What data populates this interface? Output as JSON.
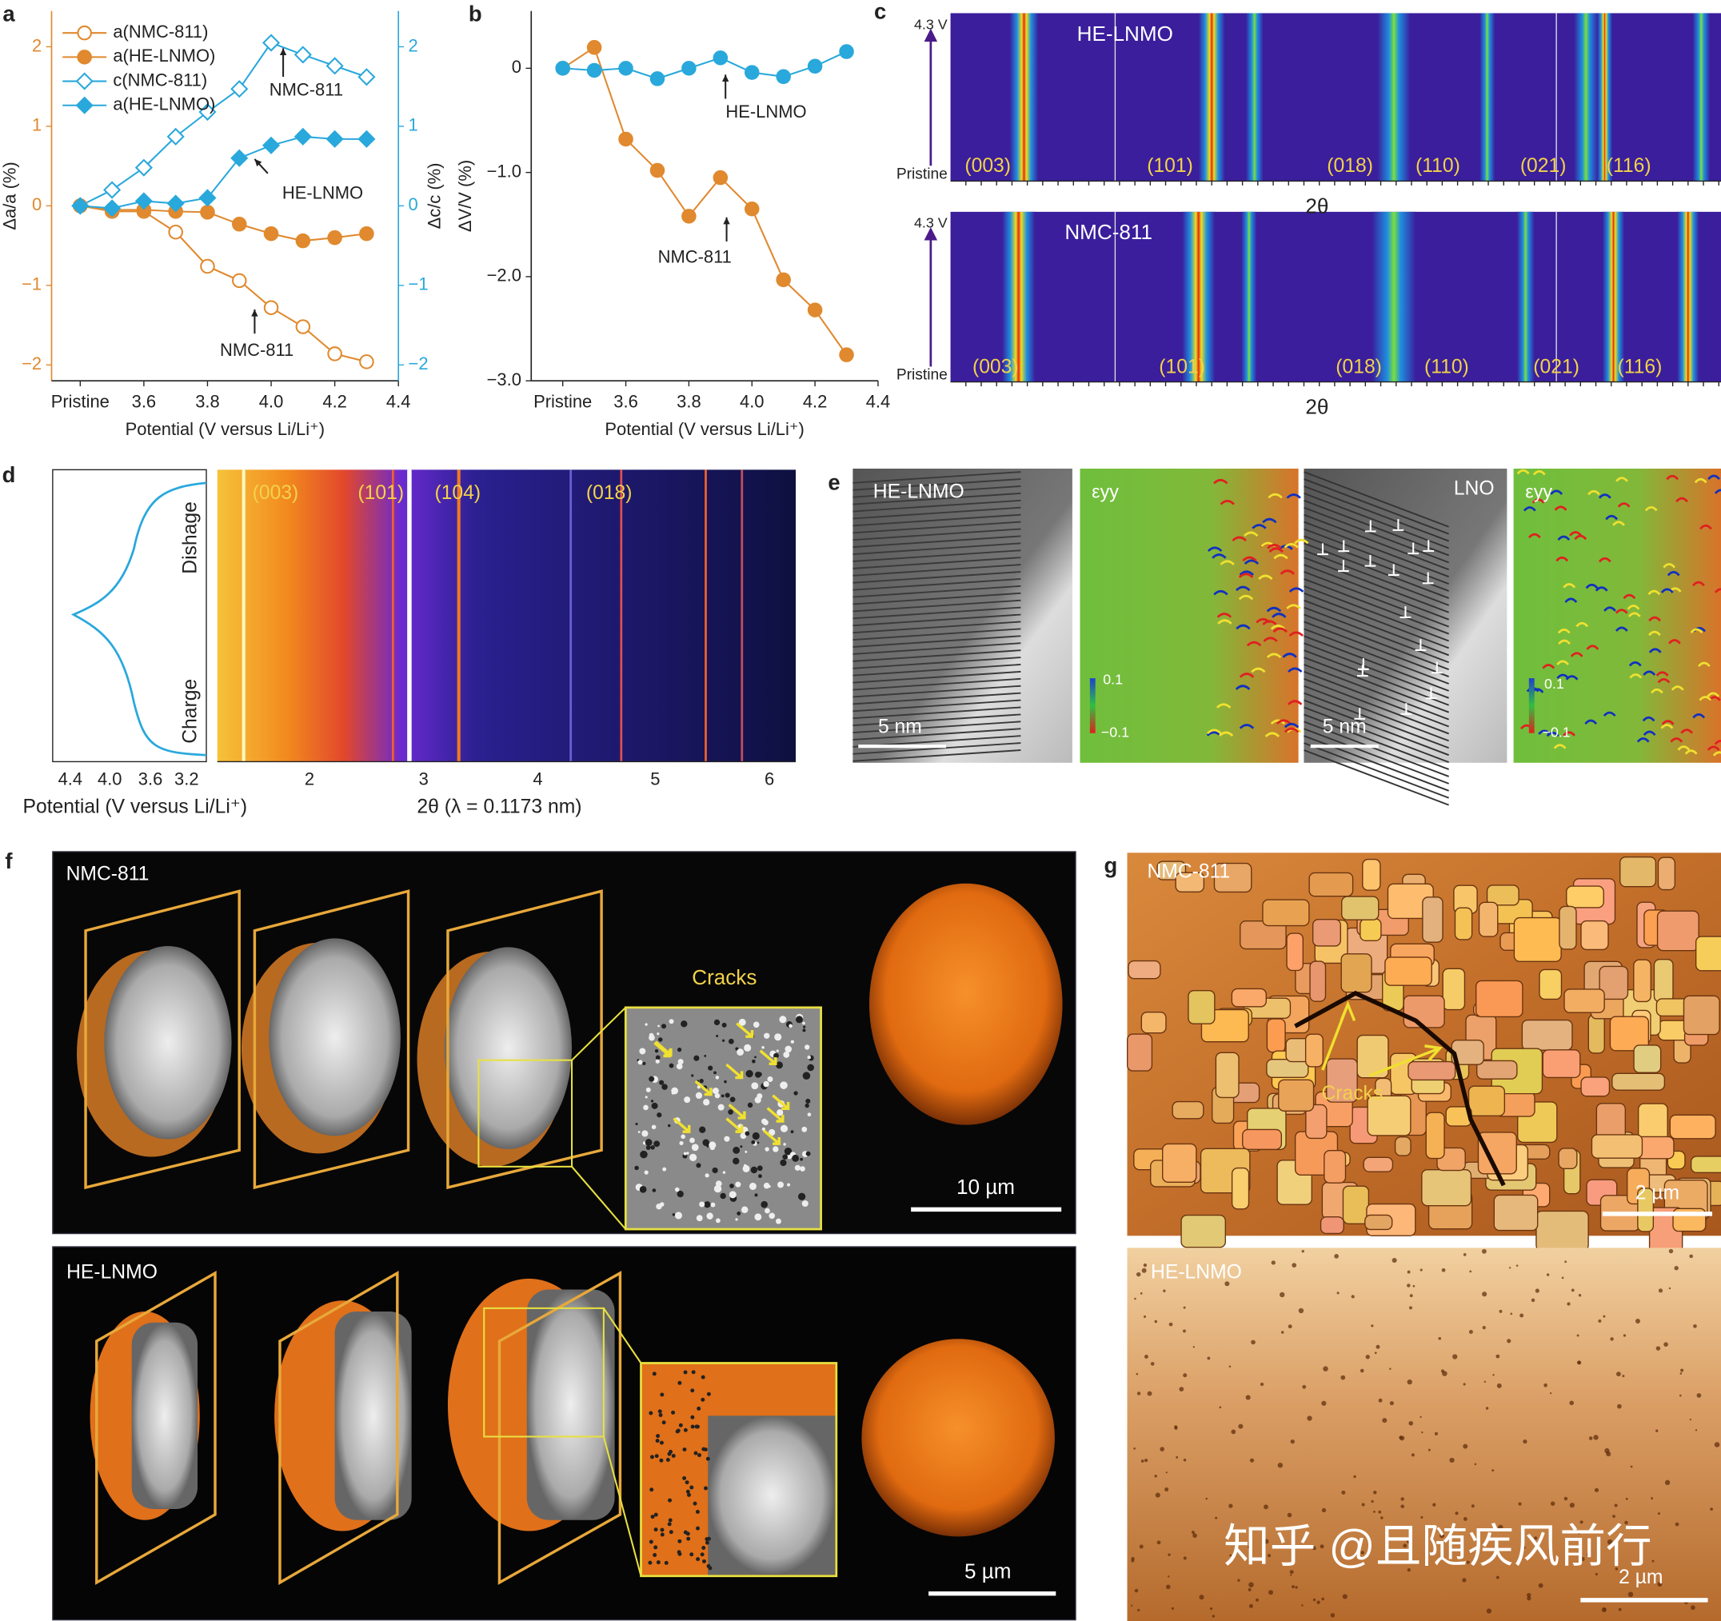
{
  "chart_data": [
    {
      "type": "line",
      "xlabel": "Potential (V versus Li/Li⁺)",
      "ylabel": "Δa/a (%)",
      "y2label": "Δc/c (%)",
      "x": [
        3.4,
        3.5,
        3.6,
        3.7,
        3.8,
        3.9,
        4.0,
        4.1,
        4.2,
        4.3
      ],
      "xlim": [
        3.31,
        4.4
      ],
      "xticks": [
        {
          "value": 3.4,
          "label": "Pristine"
        },
        3.6,
        3.8,
        {
          "value": 4,
          "label": "4.0"
        },
        4.2,
        4.4
      ],
      "ylim": [
        -2.2,
        2.45
      ],
      "yticks": [
        {
          "value": -2,
          "label": "−2"
        },
        {
          "value": -1,
          "label": "−1"
        },
        0,
        1,
        2
      ],
      "y2lim": [
        -2.2,
        2.45
      ],
      "y2ticks": [
        {
          "value": -2,
          "label": "−2"
        },
        {
          "value": -1,
          "label": "−1"
        },
        0,
        1,
        2
      ],
      "yaxis_color": "#e0892e",
      "y2axis_color": "#29a8dc",
      "legend": "upper left",
      "series": [
        {
          "name": "a(NMC-811)",
          "color": "#e0892e",
          "marker": "circle",
          "filled": false,
          "values": [
            0,
            -0.07,
            -0.07,
            -0.33,
            -0.76,
            -0.94,
            -1.28,
            -1.52,
            -1.86,
            -1.96
          ]
        },
        {
          "name": "a(HE-LNMO)",
          "color": "#e0892e",
          "marker": "circle",
          "filled": true,
          "values": [
            0,
            -0.05,
            -0.05,
            -0.07,
            -0.08,
            -0.23,
            -0.35,
            -0.44,
            -0.4,
            -0.35
          ]
        },
        {
          "name": "c(NMC-811)",
          "color": "#29a8dc",
          "marker": "diamond",
          "filled": false,
          "axis": "y2",
          "values": [
            0,
            0.2,
            0.48,
            0.87,
            1.18,
            1.47,
            2.05,
            1.9,
            1.76,
            1.62
          ]
        },
        {
          "name": "a(HE-LNMO)",
          "color": "#29a8dc",
          "marker": "diamond",
          "filled": true,
          "axis": "y2",
          "values": [
            0,
            -0.03,
            0.06,
            0.03,
            0.1,
            0.6,
            0.76,
            0.87,
            0.84,
            0.84
          ]
        }
      ],
      "annotations": [
        "NMC-811",
        "HE-LNMO",
        "NMC-811"
      ]
    },
    {
      "type": "line",
      "xlabel": "Potential (V versus Li/Li⁺)",
      "ylabel": "ΔV/V (%)",
      "x": [
        3.4,
        3.5,
        3.6,
        3.7,
        3.8,
        3.9,
        4.0,
        4.1,
        4.2,
        4.3
      ],
      "xlim": [
        3.3,
        4.4
      ],
      "xticks": [
        {
          "value": 3.4,
          "label": "Pristine"
        },
        3.6,
        3.8,
        {
          "value": 4,
          "label": "4.0"
        },
        4.2,
        4.4
      ],
      "ylim": [
        -3.0,
        0.55
      ],
      "yticks": [
        {
          "value": -3,
          "label": "−3.0"
        },
        {
          "value": -2,
          "label": "−2.0"
        },
        {
          "value": -1,
          "label": "−1.0"
        },
        0
      ],
      "series": [
        {
          "color": "#e0892e",
          "marker": "circle",
          "filled": true,
          "values": [
            0,
            0.2,
            -0.68,
            -0.98,
            -1.42,
            -1.05,
            -1.35,
            -2.03,
            -2.32,
            -2.75
          ]
        },
        {
          "color": "#29a8dc",
          "marker": "circle",
          "filled": true,
          "values": [
            0,
            -0.02,
            0,
            -0.1,
            0,
            0.1,
            -0.04,
            -0.08,
            0.02,
            0.16
          ]
        }
      ],
      "annotations": [
        "HE-LNMO",
        "NMC-811"
      ]
    }
  ],
  "panel_labels": [
    "a",
    "b",
    "c",
    "d",
    "e",
    "f",
    "g"
  ],
  "panels": {
    "c": {
      "top": {
        "title": "HE-LNMO",
        "voltage": "4.3 V",
        "start": "Pristine",
        "peaks": [
          "(003)",
          "(101)",
          "(018)",
          "(110)",
          "(021)",
          "(116)"
        ],
        "xlabel": "2θ"
      },
      "bottom": {
        "title": "NMC-811",
        "voltage": "4.3 V",
        "start": "Pristine",
        "peaks": [
          "(003)",
          "(101)",
          "(018)",
          "(110)",
          "(021)",
          "(116)"
        ],
        "xlabel": "2θ"
      }
    },
    "d": {
      "curve_ticks": [
        "4.4",
        "4.0",
        "3.6",
        "3.2"
      ],
      "curve_xlabel": "Potential (V versus Li/Li⁺)",
      "curve_labels": [
        "Dishage",
        "Charge"
      ],
      "map_peaks": [
        "(003)",
        "(101)",
        "(104)",
        "(018)"
      ],
      "map_ticks": [
        "2",
        "3",
        "4",
        "5",
        "6"
      ],
      "map_xlabel": "2θ (λ = 0.1173 nm)"
    },
    "e": {
      "images": [
        {
          "label": "HE-LNMO",
          "scale": "5 nm"
        },
        {
          "label": "εyy",
          "colorbar": [
            "0.1",
            "−0.1"
          ]
        },
        {
          "label": "LNO",
          "scale": "5 nm"
        },
        {
          "label": "εyy",
          "colorbar": [
            "0.1",
            "−0.1"
          ]
        }
      ]
    },
    "f": {
      "top": {
        "title": "NMC-811",
        "callout": "Cracks",
        "scale": "10 µm"
      },
      "bottom": {
        "title": "HE-LNMO",
        "scale": "5 µm"
      }
    },
    "g": {
      "top": {
        "title": "NMC-811",
        "callout": "Cracks",
        "scale": "2 µm"
      },
      "bottom": {
        "title": "HE-LNMO",
        "scale": "2 µm"
      },
      "watermark": "知乎 @且随疾风前行"
    }
  }
}
